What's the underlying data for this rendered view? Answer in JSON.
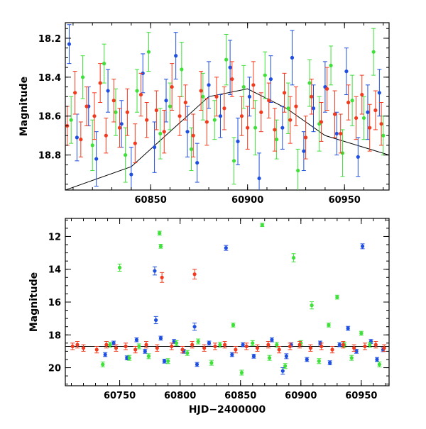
{
  "colors": {
    "blue": "#1f4fe0",
    "green": "#3fe03a",
    "red": "#f23a1e"
  },
  "chart_data": [
    {
      "type": "scatter",
      "title": "",
      "xlabel": "",
      "ylabel": "Magnitude",
      "xlim": [
        60806,
        60973
      ],
      "ylim": [
        18.98,
        18.12
      ],
      "y_inverted": true,
      "grid": false,
      "xticks": [
        60850,
        60900,
        60950
      ],
      "yticks": [
        18.2,
        18.4,
        18.6,
        18.8
      ],
      "series": [
        {
          "color": "blue",
          "x": [
            60808,
            60812,
            60818,
            60822,
            60828,
            60835,
            60840,
            60846,
            60852,
            60858,
            60863,
            60869,
            60874,
            60880,
            60886,
            60891,
            60895,
            60901,
            60906,
            60912,
            60918,
            60923,
            60929,
            60934,
            60940,
            60946,
            60951,
            60957,
            60962,
            60968
          ],
          "y": [
            18.23,
            18.71,
            18.55,
            18.82,
            18.47,
            18.64,
            18.9,
            18.38,
            18.76,
            18.52,
            18.29,
            18.68,
            18.84,
            18.44,
            18.6,
            18.35,
            18.73,
            18.5,
            18.92,
            18.41,
            18.66,
            18.3,
            18.78,
            18.56,
            18.45,
            18.69,
            18.37,
            18.81,
            18.58,
            18.48
          ],
          "yerr": [
            0.1,
            0.12,
            0.1,
            0.14,
            0.11,
            0.12,
            0.14,
            0.1,
            0.13,
            0.11,
            0.12,
            0.13,
            0.1,
            0.12,
            0.11,
            0.14,
            0.12,
            0.1,
            0.13,
            0.12,
            0.11,
            0.14,
            0.1,
            0.12,
            0.13,
            0.11,
            0.12,
            0.1,
            0.14,
            0.12
          ]
        },
        {
          "color": "green",
          "x": [
            60809,
            60815,
            60820,
            60826,
            60832,
            60837,
            60843,
            60849,
            60855,
            60860,
            60866,
            60871,
            60877,
            60883,
            60889,
            60893,
            60898,
            60904,
            60909,
            60915,
            60921,
            60926,
            60932,
            60937,
            60943,
            60949,
            60954,
            60960,
            60965,
            60970
          ],
          "y": [
            18.62,
            18.4,
            18.75,
            18.33,
            18.58,
            18.8,
            18.47,
            18.27,
            18.69,
            18.55,
            18.36,
            18.77,
            18.5,
            18.62,
            18.31,
            18.83,
            18.45,
            18.66,
            18.39,
            18.72,
            18.56,
            18.88,
            18.43,
            18.64,
            18.34,
            18.79,
            18.52,
            18.61,
            18.27,
            18.7
          ],
          "yerr": [
            0.12,
            0.11,
            0.13,
            0.1,
            0.12,
            0.14,
            0.11,
            0.1,
            0.13,
            0.12,
            0.14,
            0.11,
            0.12,
            0.1,
            0.13,
            0.12,
            0.11,
            0.14,
            0.12,
            0.1,
            0.13,
            0.11,
            0.12,
            0.14,
            0.1,
            0.12,
            0.13,
            0.11,
            0.12,
            0.1
          ]
        },
        {
          "color": "red",
          "x": [
            60807,
            60811,
            60814,
            60817,
            60821,
            60824,
            60827,
            60831,
            60834,
            60838,
            60842,
            60845,
            60848,
            60853,
            60857,
            60861,
            60865,
            60868,
            60872,
            60876,
            60879,
            60884,
            60888,
            60892,
            60897,
            60900,
            60903,
            60907,
            60911,
            60914,
            60919,
            60922,
            60925,
            60930,
            60933,
            60938,
            60941,
            60945,
            60948,
            60952,
            60956,
            60959,
            60963,
            60966,
            60969
          ],
          "y": [
            18.65,
            18.48,
            18.72,
            18.55,
            18.6,
            18.43,
            18.7,
            18.52,
            18.66,
            18.58,
            18.74,
            18.49,
            18.62,
            18.57,
            18.68,
            18.45,
            18.6,
            18.53,
            18.7,
            18.47,
            18.63,
            18.5,
            18.56,
            18.41,
            18.6,
            18.66,
            18.44,
            18.58,
            18.52,
            18.67,
            18.48,
            18.62,
            18.55,
            18.71,
            18.5,
            18.63,
            18.46,
            18.59,
            18.69,
            18.53,
            18.61,
            18.49,
            18.66,
            18.57,
            18.64
          ],
          "yerr": [
            0.1,
            0.11,
            0.09,
            0.1,
            0.12,
            0.1,
            0.09,
            0.11,
            0.1,
            0.12,
            0.1,
            0.11,
            0.09,
            0.1,
            0.11,
            0.12,
            0.1,
            0.09,
            0.11,
            0.1,
            0.12,
            0.1,
            0.11,
            0.09,
            0.1,
            0.11,
            0.12,
            0.1,
            0.09,
            0.11,
            0.1,
            0.12,
            0.1,
            0.11,
            0.09,
            0.1,
            0.11,
            0.12,
            0.1,
            0.09,
            0.11,
            0.1,
            0.12,
            0.1,
            0.11
          ]
        }
      ],
      "trend": {
        "x": [
          60806,
          60840,
          60860,
          60880,
          60900,
          60920,
          60940,
          60973
        ],
        "y": [
          18.98,
          18.86,
          18.68,
          18.5,
          18.46,
          18.56,
          18.7,
          18.8
        ]
      }
    },
    {
      "type": "scatter",
      "title": "",
      "xlabel": "HJD−2400000",
      "ylabel": "Magnitude",
      "xlim": [
        60705,
        60973
      ],
      "ylim": [
        21.1,
        10.9
      ],
      "y_inverted": true,
      "grid": false,
      "xticks": [
        60750,
        60800,
        60850,
        60900,
        60950
      ],
      "yticks": [
        12,
        14,
        16,
        18,
        20
      ],
      "baseline": 18.7,
      "series": [
        {
          "color": "blue",
          "x": [
            60738,
            60745,
            60756,
            60764,
            60771,
            60779,
            60780,
            60784,
            60787,
            60795,
            60803,
            60812,
            60814,
            60824,
            60838,
            60843,
            60852,
            60861,
            60876,
            60885,
            60888,
            60892,
            60905,
            60916,
            60924,
            60932,
            60939,
            60946,
            60951,
            60958,
            60963,
            60968
          ],
          "y": [
            19.2,
            18.5,
            19.4,
            18.3,
            19.0,
            14.1,
            17.1,
            18.2,
            19.6,
            18.4,
            19.0,
            17.5,
            19.8,
            18.5,
            12.7,
            19.2,
            18.6,
            19.3,
            18.3,
            20.2,
            19.3,
            18.6,
            19.5,
            18.5,
            19.7,
            18.6,
            17.6,
            19.0,
            12.6,
            18.4,
            19.5,
            18.9
          ],
          "yerr": [
            0.12,
            0.12,
            0.12,
            0.12,
            0.12,
            0.25,
            0.22,
            0.12,
            0.12,
            0.12,
            0.12,
            0.22,
            0.12,
            0.12,
            0.15,
            0.12,
            0.12,
            0.12,
            0.12,
            0.2,
            0.15,
            0.12,
            0.12,
            0.12,
            0.12,
            0.12,
            0.12,
            0.12,
            0.15,
            0.12,
            0.12,
            0.12
          ]
        },
        {
          "color": "green",
          "x": [
            60736,
            60742,
            60750,
            60758,
            60766,
            60774,
            60783,
            60784,
            60790,
            60797,
            60806,
            60815,
            60826,
            60833,
            60844,
            60851,
            60860,
            60868,
            60874,
            60880,
            60887,
            60894,
            60900,
            60909,
            60915,
            60923,
            60930,
            60936,
            60942,
            60950,
            60957,
            60965
          ],
          "y": [
            19.8,
            18.6,
            13.9,
            19.4,
            18.7,
            19.3,
            11.8,
            12.6,
            19.6,
            18.5,
            19.1,
            18.4,
            19.7,
            18.6,
            17.4,
            20.3,
            18.5,
            11.3,
            19.4,
            18.6,
            19.9,
            13.3,
            18.5,
            16.2,
            19.6,
            17.4,
            15.7,
            18.6,
            19.4,
            17.9,
            18.6,
            19.8
          ],
          "yerr": [
            0.15,
            0.15,
            0.22,
            0.15,
            0.15,
            0.15,
            0.12,
            0.12,
            0.15,
            0.15,
            0.15,
            0.15,
            0.15,
            0.15,
            0.12,
            0.15,
            0.15,
            0.1,
            0.15,
            0.15,
            0.15,
            0.25,
            0.15,
            0.22,
            0.15,
            0.12,
            0.12,
            0.15,
            0.15,
            0.12,
            0.15,
            0.15
          ]
        },
        {
          "color": "red",
          "x": [
            60711,
            60715,
            60720,
            60731,
            60739,
            60747,
            60755,
            60763,
            60772,
            60781,
            60785,
            60793,
            60802,
            60810,
            60812,
            60820,
            60829,
            60837,
            60846,
            60855,
            60864,
            60873,
            60882,
            60891,
            60899,
            60908,
            60917,
            60926,
            60935,
            60944,
            60953,
            60962,
            60969
          ],
          "y": [
            18.7,
            18.6,
            18.8,
            18.9,
            18.6,
            18.8,
            18.7,
            18.9,
            18.6,
            18.8,
            14.5,
            18.7,
            18.9,
            18.6,
            14.3,
            18.8,
            18.7,
            18.6,
            18.9,
            18.7,
            18.8,
            18.6,
            18.9,
            18.7,
            18.6,
            18.8,
            18.7,
            18.9,
            18.6,
            18.8,
            18.7,
            18.6,
            18.8
          ],
          "yerr": [
            0.2,
            0.2,
            0.2,
            0.2,
            0.2,
            0.2,
            0.2,
            0.2,
            0.2,
            0.2,
            0.3,
            0.2,
            0.2,
            0.2,
            0.3,
            0.2,
            0.2,
            0.2,
            0.2,
            0.2,
            0.2,
            0.2,
            0.2,
            0.2,
            0.2,
            0.2,
            0.2,
            0.2,
            0.2,
            0.2,
            0.2,
            0.2,
            0.2
          ]
        }
      ]
    }
  ]
}
